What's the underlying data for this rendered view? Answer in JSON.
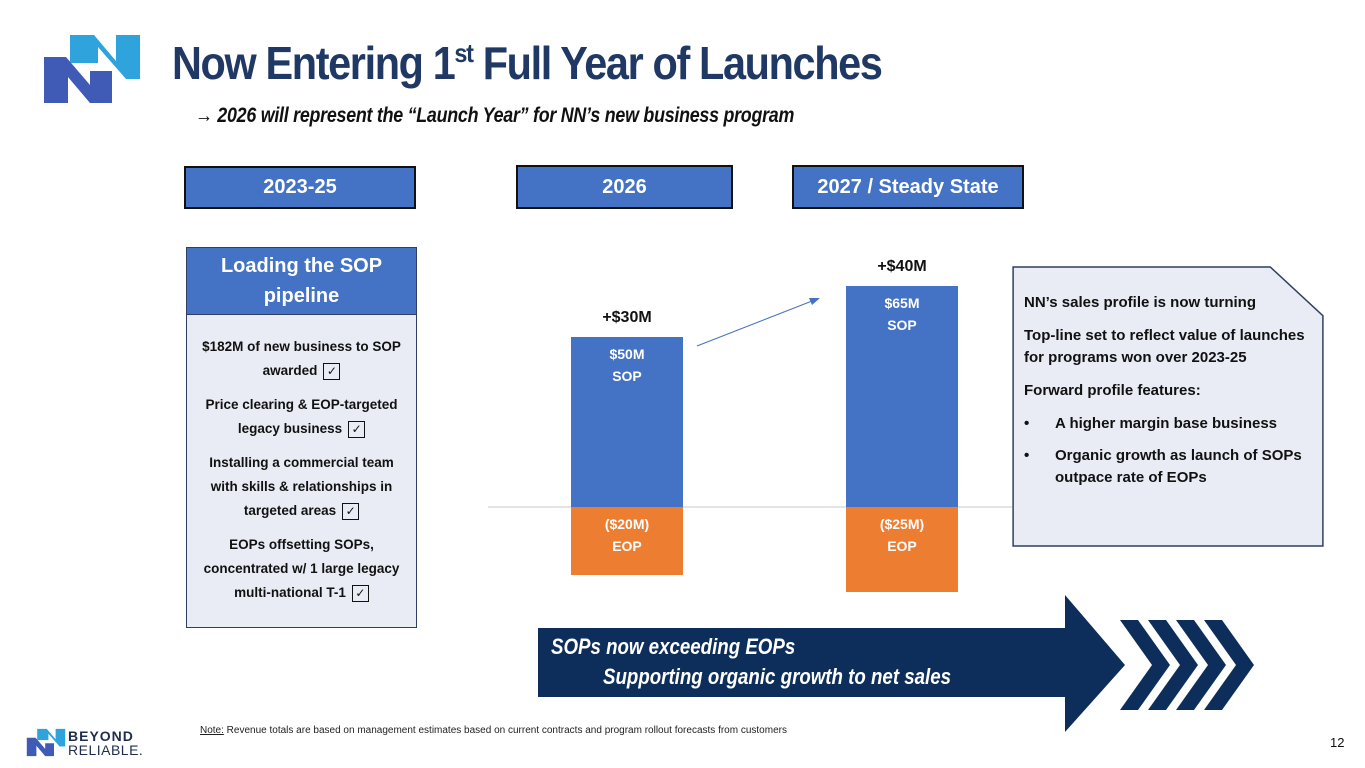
{
  "header": {
    "title_main": "Now Entering 1",
    "title_sup": "st",
    "title_rest": " Full Year of Launches",
    "subtitle": "→ 2026 will represent the “Launch Year” for NN’s new business program"
  },
  "periods": [
    "2023-25",
    "2026",
    "2027 / Steady State"
  ],
  "pipeline_card": {
    "heading": "Loading the SOP pipeline",
    "items": [
      {
        "text": "$182M of new business to SOP awarded",
        "checked": true
      },
      {
        "text": "Price clearing & EOP-targeted legacy business",
        "checked": true
      },
      {
        "text": "Installing a commercial team with skills & relationships in targeted areas",
        "checked": true
      },
      {
        "text": "EOPs offsetting SOPs, concentrated w/ 1 large legacy multi-national T-1",
        "checked": true
      }
    ],
    "check_glyph": "✓"
  },
  "chart_data": {
    "type": "bar",
    "stacked": true,
    "title": "",
    "xlabel": "",
    "ylabel": "",
    "categories": [
      "2026",
      "2027 / Steady State"
    ],
    "series": [
      {
        "name": "SOP",
        "values": [
          50,
          65
        ],
        "color": "#4472c4",
        "labels": [
          "$50M\nSOP",
          "$65M\nSOP"
        ]
      },
      {
        "name": "EOP",
        "values": [
          -20,
          -25
        ],
        "color": "#ed7d31",
        "labels": [
          "($20M)\nEOP",
          "($25M)\nEOP"
        ]
      }
    ],
    "net_labels": [
      "+$30M",
      "+$40M"
    ],
    "net_values": [
      30,
      40
    ],
    "ylim": [
      -25,
      65
    ],
    "grid": false,
    "zero_line": true
  },
  "note_box": {
    "line1": "NN’s sales profile is now turning",
    "line2": "Top-line set to reflect value of launches for programs won over 2023-25",
    "line3": "Forward profile features:",
    "bullets": [
      "A higher margin base business",
      "Organic growth as launch of SOPs outpace rate of EOPs"
    ],
    "bullet_glyph": "•"
  },
  "banner": {
    "line1": "SOPs now exceeding EOPs",
    "line2": "Supporting organic growth to net sales"
  },
  "footer": {
    "note_label": "Note:",
    "note_text": " Revenue totals are based on management estimates based on current contracts and program rollout forecasts from customers",
    "brand_line1": "BEYOND",
    "brand_line2": "RELIABLE.",
    "page_number": "12"
  },
  "colors": {
    "navy": "#1f3864",
    "blue": "#4472c4",
    "orange": "#ed7d31",
    "banner": "#0d2e5a",
    "logo_light": "#2ea3dc",
    "logo_dark": "#3f5bb5"
  }
}
